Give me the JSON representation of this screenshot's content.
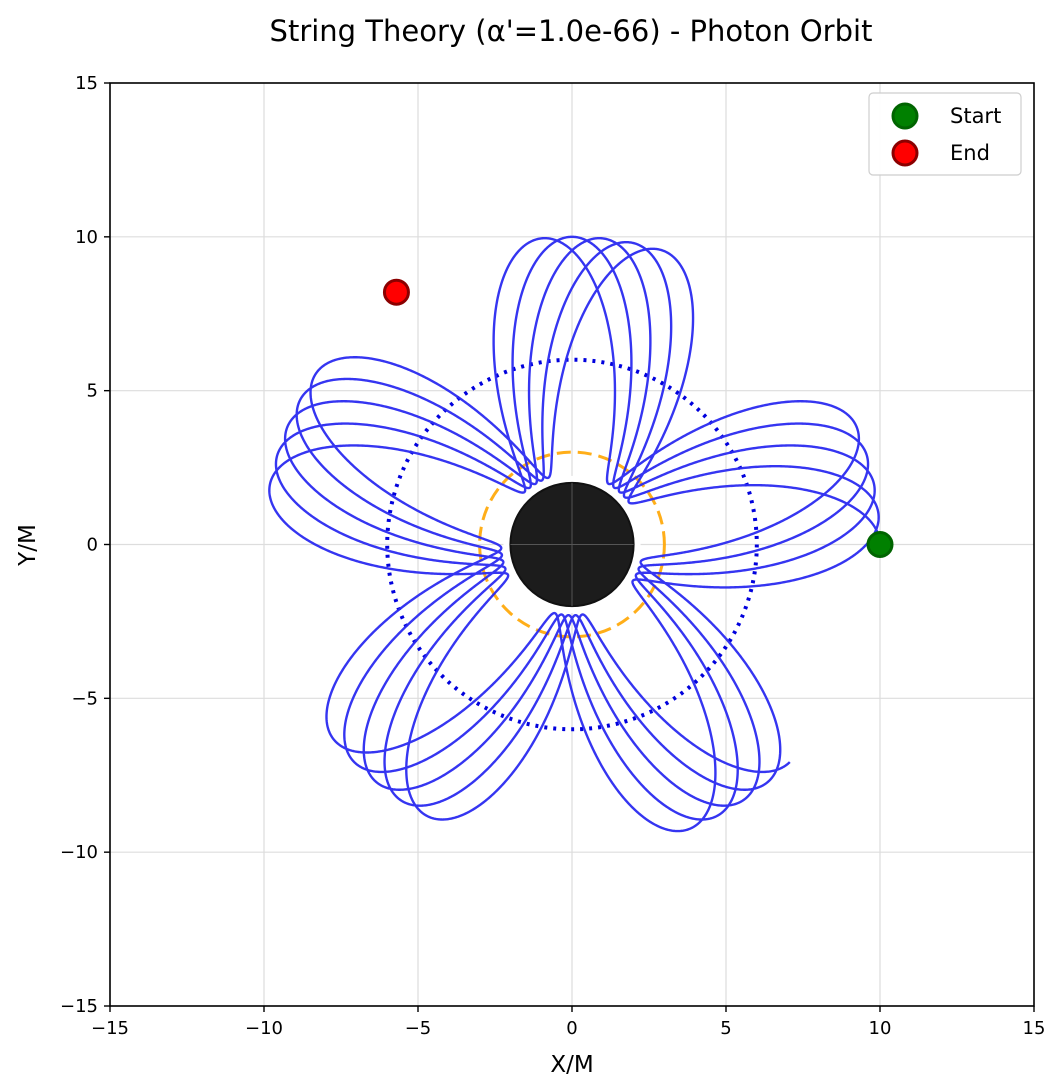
{
  "chart_data": {
    "type": "line",
    "title": "String Theory (α'=1.0e-66) - Photon Orbit",
    "xlabel": "X/M",
    "ylabel": "Y/M",
    "xlim": [
      -15,
      15
    ],
    "ylim": [
      -15,
      15
    ],
    "xticks": [
      -15,
      -10,
      -5,
      0,
      5,
      10,
      15
    ],
    "yticks": [
      -15,
      -10,
      -5,
      0,
      5,
      10,
      15
    ],
    "xtick_labels": [
      "−15",
      "−10",
      "−5",
      "0",
      "5",
      "10",
      "15"
    ],
    "ytick_labels": [
      "−15",
      "−10",
      "−5",
      "0",
      "5",
      "10",
      "15"
    ],
    "grid": true,
    "legend_position": "top-right",
    "legend": [
      {
        "label": "Start",
        "color": "#008000",
        "edge": "#006400"
      },
      {
        "label": "End",
        "color": "#ff0000",
        "edge": "#8b0000"
      }
    ],
    "orbit": {
      "color": "#2a2af0",
      "r_max": 10.0,
      "r_min": 2.3,
      "lobes": 24,
      "turns": 4.875
    },
    "photon_sphere": {
      "radius": 6.0,
      "color": "#0000dd",
      "style": "dotted"
    },
    "isco": {
      "radius": 3.0,
      "color": "#ffa500",
      "style": "dashed"
    },
    "horizon": {
      "radius": 2.0,
      "color": "#1c1c1c"
    },
    "start_point": {
      "x": 10.0,
      "y": 0.0
    },
    "end_point": {
      "x": -5.7,
      "y": 8.2
    }
  }
}
